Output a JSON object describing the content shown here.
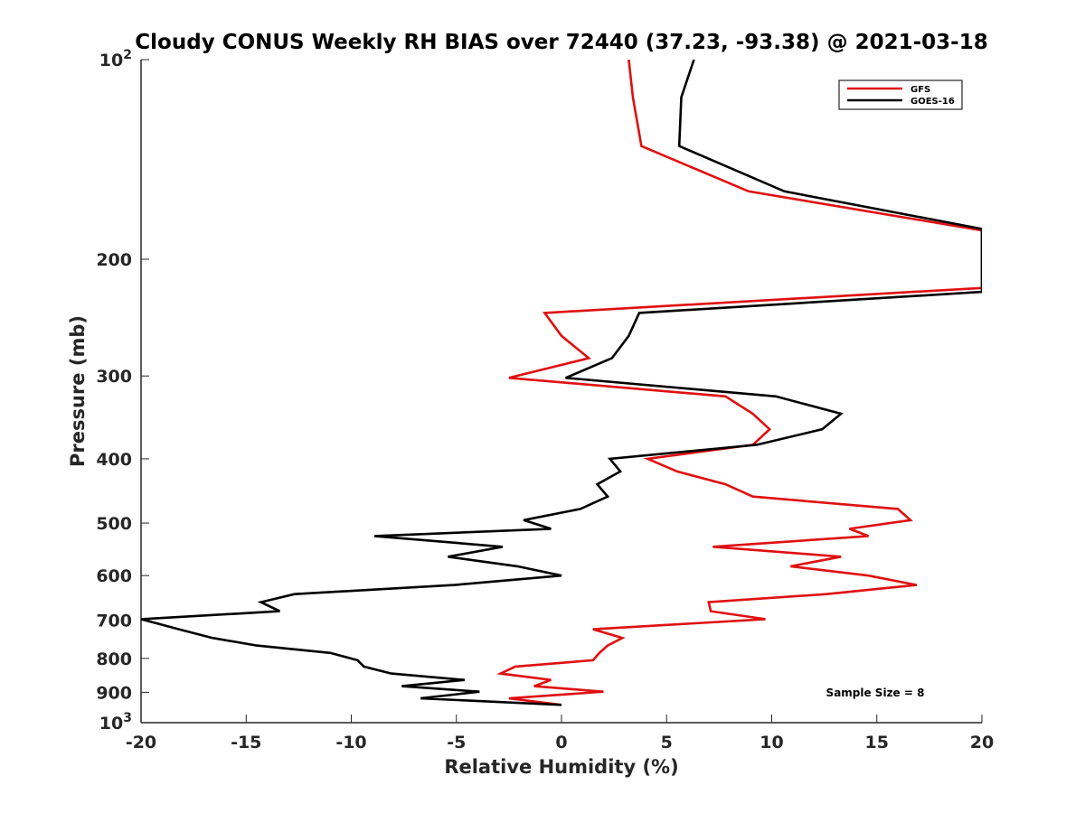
{
  "chart_data": {
    "type": "line",
    "title": "Cloudy CONUS Weekly RH BIAS over 72440 (37.23, -93.38) @ 2021-03-18",
    "xlabel": "Relative Humidity (%)",
    "ylabel": "Pressure (mb)",
    "xlim": [
      -20,
      20
    ],
    "ylim": [
      100,
      1000
    ],
    "yscale": "log",
    "y_reversed": true,
    "grid": false,
    "legend_position": "top-right",
    "x_ticks": [
      -20,
      -15,
      -10,
      -5,
      0,
      5,
      10,
      15,
      20
    ],
    "y_ticks": [
      {
        "value": 100,
        "label": "10",
        "sup": "2"
      },
      {
        "value": 200,
        "label": "200"
      },
      {
        "value": 300,
        "label": "300"
      },
      {
        "value": 400,
        "label": "400"
      },
      {
        "value": 500,
        "label": "500"
      },
      {
        "value": 600,
        "label": "600"
      },
      {
        "value": 700,
        "label": "700"
      },
      {
        "value": 800,
        "label": "800"
      },
      {
        "value": 900,
        "label": "900"
      },
      {
        "value": 1000,
        "label": "10",
        "sup": "3"
      }
    ],
    "annotation": "Sample Size = 8",
    "series": [
      {
        "name": "GFS",
        "color": "#e01010",
        "points": [
          [
            3.2,
            100
          ],
          [
            3.4,
            114
          ],
          [
            3.8,
            135
          ],
          [
            8.9,
            158
          ],
          [
            20.0,
            181
          ],
          [
            20.0,
            221
          ],
          [
            -0.8,
            241
          ],
          [
            0.0,
            261
          ],
          [
            1.3,
            282
          ],
          [
            -2.5,
            302
          ],
          [
            7.8,
            322
          ],
          [
            9.1,
            342
          ],
          [
            9.9,
            361
          ],
          [
            9.1,
            381
          ],
          [
            4.1,
            400
          ],
          [
            5.5,
            418
          ],
          [
            7.8,
            437
          ],
          [
            9.1,
            456
          ],
          [
            16.0,
            476
          ],
          [
            16.6,
            495
          ],
          [
            13.7,
            510
          ],
          [
            14.6,
            523
          ],
          [
            7.2,
            543
          ],
          [
            13.3,
            562
          ],
          [
            10.9,
            581
          ],
          [
            14.6,
            600
          ],
          [
            16.9,
            620
          ],
          [
            12.6,
            640
          ],
          [
            7.0,
            658
          ],
          [
            7.1,
            679
          ],
          [
            9.7,
            698
          ],
          [
            1.5,
            723
          ],
          [
            2.9,
            745
          ],
          [
            2.2,
            765
          ],
          [
            1.8,
            785
          ],
          [
            1.5,
            805
          ],
          [
            -2.2,
            823
          ],
          [
            -2.9,
            843
          ],
          [
            -0.5,
            862
          ],
          [
            -1.3,
            881
          ],
          [
            2.0,
            898
          ],
          [
            -2.5,
            919
          ],
          [
            0.0,
            940
          ]
        ]
      },
      {
        "name": "GOES-16",
        "color": "#000000",
        "points": [
          [
            6.3,
            100
          ],
          [
            5.7,
            114
          ],
          [
            5.6,
            135
          ],
          [
            10.6,
            158
          ],
          [
            20.0,
            180
          ],
          [
            20.0,
            224
          ],
          [
            3.7,
            241
          ],
          [
            3.2,
            261
          ],
          [
            2.4,
            282
          ],
          [
            0.2,
            302
          ],
          [
            10.2,
            322
          ],
          [
            13.3,
            342
          ],
          [
            12.4,
            361
          ],
          [
            9.3,
            381
          ],
          [
            2.3,
            400
          ],
          [
            2.8,
            418
          ],
          [
            1.7,
            437
          ],
          [
            2.2,
            456
          ],
          [
            0.9,
            476
          ],
          [
            -1.8,
            495
          ],
          [
            -0.5,
            510
          ],
          [
            -8.9,
            523
          ],
          [
            -2.8,
            543
          ],
          [
            -5.4,
            562
          ],
          [
            -2.1,
            581
          ],
          [
            0.0,
            600
          ],
          [
            -5.1,
            620
          ],
          [
            -12.7,
            640
          ],
          [
            -14.3,
            658
          ],
          [
            -13.4,
            679
          ],
          [
            -20.0,
            698
          ],
          [
            -18.2,
            723
          ],
          [
            -16.6,
            745
          ],
          [
            -14.5,
            765
          ],
          [
            -11.0,
            785
          ],
          [
            -9.7,
            805
          ],
          [
            -9.4,
            823
          ],
          [
            -8.1,
            843
          ],
          [
            -4.6,
            862
          ],
          [
            -7.6,
            881
          ],
          [
            -3.9,
            898
          ],
          [
            -6.7,
            919
          ],
          [
            0.0,
            940
          ]
        ]
      }
    ]
  }
}
